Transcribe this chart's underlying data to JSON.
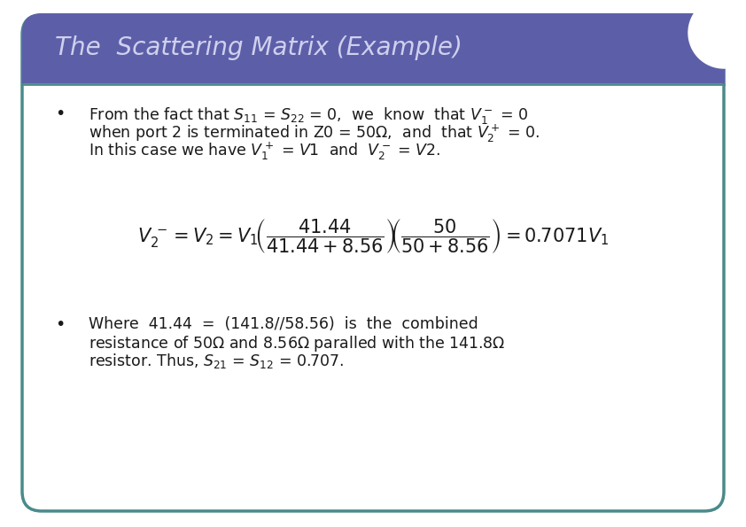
{
  "title": "The  Scattering Matrix (Example)",
  "title_color": "#D0D0EE",
  "title_bg_color": "#5C5FA8",
  "slide_bg_color": "#FFFFFF",
  "border_color": "#4A8A8A",
  "text_color": "#1A1A1A",
  "font_size": 12.5,
  "title_fontsize": 20,
  "fig_width": 8.42,
  "fig_height": 5.95,
  "dpi": 100
}
